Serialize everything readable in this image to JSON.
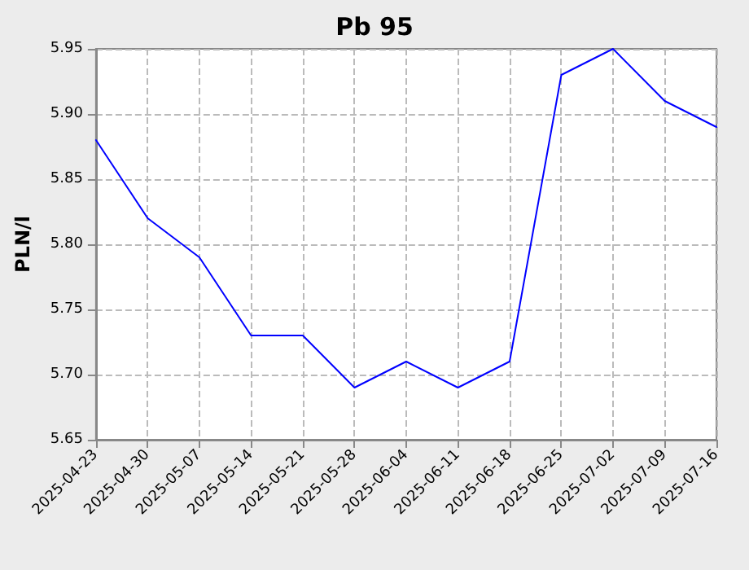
{
  "chart_data": {
    "type": "line",
    "title": "Pb 95",
    "ylabel": "PLN/l",
    "categories": [
      "2025-04-23",
      "2025-04-30",
      "2025-05-07",
      "2025-05-14",
      "2025-05-21",
      "2025-05-28",
      "2025-06-04",
      "2025-06-11",
      "2025-06-18",
      "2025-06-25",
      "2025-07-02",
      "2025-07-09",
      "2025-07-16"
    ],
    "series": [
      {
        "color": "#0000ff",
        "values": [
          5.88,
          5.82,
          5.79,
          5.73,
          5.73,
          5.69,
          5.71,
          5.69,
          5.71,
          5.93,
          5.95,
          5.91,
          5.89
        ]
      }
    ],
    "ylim": [
      5.65,
      5.95
    ],
    "yticks": [
      5.65,
      {
        "value": 5.7,
        "label": "5.70"
      },
      5.75,
      {
        "value": 5.8,
        "label": "5.80"
      },
      5.85,
      {
        "value": 5.9,
        "label": "5.90"
      },
      5.95
    ],
    "grid": true,
    "marker": "none"
  }
}
